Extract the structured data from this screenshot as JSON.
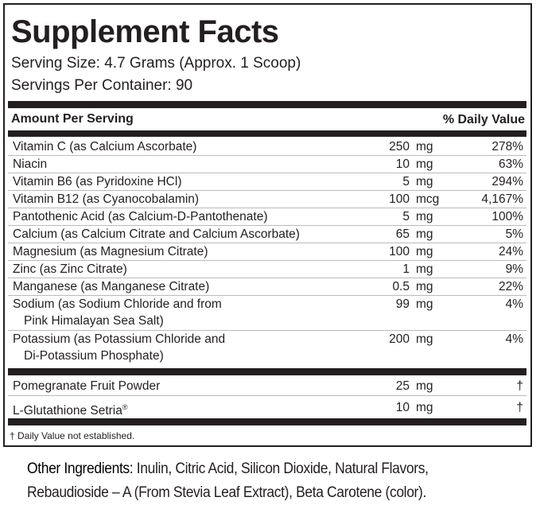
{
  "title": "Supplement Facts",
  "serving_size": "Serving Size: 4.7 Grams (Approx. 1 Scoop)",
  "servings_per_container": "Servings Per Container: 90",
  "header": {
    "amount_per_serving": "Amount Per Serving",
    "daily_value": "% Daily Value"
  },
  "nutrients": [
    {
      "name": "Vitamin C (as Calcium Ascorbate)",
      "amount": "250",
      "unit": "mg",
      "dv": "278%"
    },
    {
      "name": "Niacin",
      "amount": "10",
      "unit": "mg",
      "dv": "63%"
    },
    {
      "name": "Vitamin B6 (as Pyridoxine HCl)",
      "amount": "5",
      "unit": "mg",
      "dv": "294%"
    },
    {
      "name": "Vitamin B12 (as Cyanocobalamin)",
      "amount": "100",
      "unit": "mcg",
      "dv": "4,167%"
    },
    {
      "name": "Pantothenic Acid (as Calcium-D-Pantothenate)",
      "amount": "5",
      "unit": "mg",
      "dv": "100%"
    },
    {
      "name": "Calcium (as Calcium Citrate and Calcium Ascorbate)",
      "amount": "65",
      "unit": "mg",
      "dv": "5%"
    },
    {
      "name": "Magnesium (as Magnesium Citrate)",
      "amount": "100",
      "unit": "mg",
      "dv": "24%"
    },
    {
      "name": "Zinc (as Zinc Citrate)",
      "amount": "1",
      "unit": "mg",
      "dv": "9%"
    },
    {
      "name": "Manganese (as Manganese Citrate)",
      "amount": "0.5",
      "unit": "mg",
      "dv": "22%"
    },
    {
      "name": "Sodium (as Sodium Chloride and from",
      "name2": "Pink Himalayan Sea Salt)",
      "amount": "99",
      "unit": "mg",
      "dv": "4%"
    },
    {
      "name": "Potassium (as Potassium Chloride and",
      "name2": "Di-Potassium Phosphate)",
      "amount": "200",
      "unit": "mg",
      "dv": "4%"
    }
  ],
  "other_actives": [
    {
      "name": "Pomegranate Fruit Powder",
      "amount": "25",
      "unit": "mg",
      "dv": "†"
    },
    {
      "name": "L-Glutathione Setria",
      "reg": "®",
      "amount": "10",
      "unit": "mg",
      "dv": "†"
    }
  ],
  "footnote": "† Daily Value not established.",
  "other_ingredients": {
    "label": "Other Ingredients:",
    "line1": " Inulin, Citric Acid, Silicon Dioxide, Natural Flavors,",
    "line2": "Rebaudioside – A (From Stevia Leaf Extract), Beta Carotene (color)."
  }
}
